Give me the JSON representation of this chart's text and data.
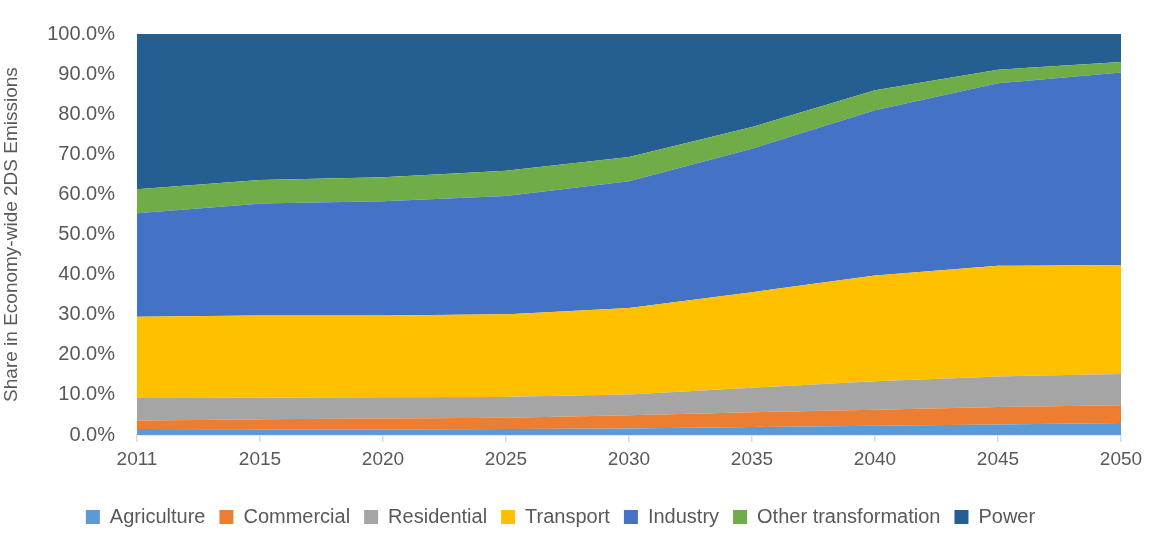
{
  "chart_data": {
    "type": "area",
    "stacked": true,
    "ylabel": "Share in Economy-wide 2DS Emissions",
    "categories": [
      "2011",
      "2015",
      "2020",
      "2025",
      "2030",
      "2035",
      "2040",
      "2045",
      "2050"
    ],
    "ylim": [
      0,
      100
    ],
    "yticks": [
      {
        "value": 0,
        "label": "0.0%"
      },
      {
        "value": 10,
        "label": "10.0%"
      },
      {
        "value": 20,
        "label": "20.0%"
      },
      {
        "value": 30,
        "label": "30.0%"
      },
      {
        "value": 40,
        "label": "40.0%"
      },
      {
        "value": 50,
        "label": "50.0%"
      },
      {
        "value": 60,
        "label": "60.0%"
      },
      {
        "value": 70,
        "label": "70.0%"
      },
      {
        "value": 80,
        "label": "80.0%"
      },
      {
        "value": 90,
        "label": "90.0%"
      },
      {
        "value": 100,
        "label": "100.0%"
      }
    ],
    "legend": "bottom",
    "series": [
      {
        "name": "Agriculture",
        "color": "#5b9bd5",
        "values": [
          1.5,
          1.4,
          1.4,
          1.5,
          1.6,
          2.0,
          2.3,
          2.6,
          3.0
        ]
      },
      {
        "name": "Commercial",
        "color": "#ed7d31",
        "values": [
          2.1,
          2.5,
          2.7,
          2.8,
          3.3,
          3.7,
          4.0,
          4.4,
          4.4
        ]
      },
      {
        "name": "Residential",
        "color": "#a5a5a5",
        "values": [
          5.6,
          5.4,
          5.3,
          5.2,
          5.2,
          6.1,
          7.1,
          7.6,
          7.8
        ]
      },
      {
        "name": "Transport",
        "color": "#ffc000",
        "values": [
          20.3,
          20.5,
          20.4,
          20.6,
          21.6,
          23.8,
          26.4,
          27.6,
          27.2
        ]
      },
      {
        "name": "Industry",
        "color": "#4472c4",
        "values": [
          25.8,
          27.9,
          28.5,
          29.5,
          31.6,
          35.8,
          41.2,
          45.5,
          48.0
        ]
      },
      {
        "name": "Other transformation",
        "color": "#70ad47",
        "values": [
          6.0,
          5.9,
          6.0,
          6.3,
          6.0,
          5.4,
          5.0,
          3.4,
          2.6
        ]
      },
      {
        "name": "Power",
        "color": "#255e91",
        "values": [
          38.7,
          36.4,
          35.7,
          34.1,
          30.7,
          23.2,
          14.0,
          8.9,
          7.0
        ]
      }
    ]
  }
}
